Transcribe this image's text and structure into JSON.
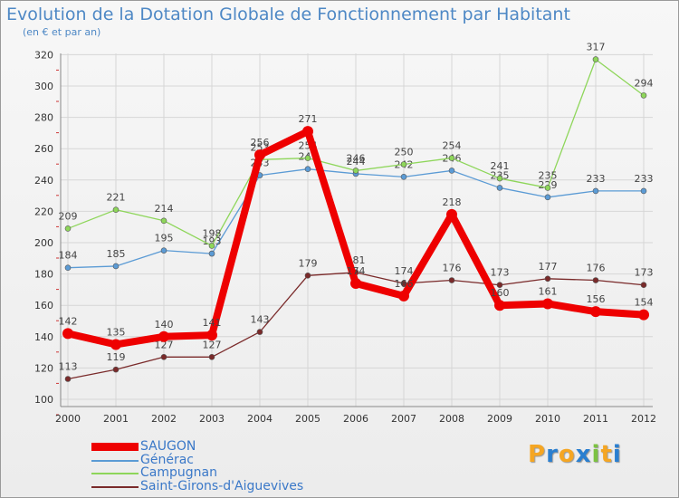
{
  "chart_data": {
    "type": "line",
    "title": "Evolution de la Dotation Globale de Fonctionnement par Habitant",
    "subtitle": "(en € et par an)",
    "x": [
      "2000",
      "2001",
      "2002",
      "2003",
      "2004",
      "2005",
      "2006",
      "2007",
      "2008",
      "2009",
      "2010",
      "2011",
      "2012"
    ],
    "ylim": [
      100,
      320
    ],
    "yticks": [
      100,
      120,
      140,
      160,
      180,
      200,
      220,
      240,
      260,
      280,
      300,
      320
    ],
    "series": [
      {
        "name": "Saint-Girons-d'Aiguevives",
        "color": "#7a2a2a",
        "values": [
          113,
          119,
          127,
          127,
          143,
          179,
          181,
          174,
          176,
          173,
          177,
          176,
          173
        ]
      },
      {
        "name": "Générac",
        "color": "#5b9bd5",
        "values": [
          184,
          185,
          195,
          193,
          243,
          247,
          244,
          242,
          246,
          235,
          229,
          233,
          233
        ]
      },
      {
        "name": "Campugnan",
        "color": "#8ed65a",
        "values": [
          209,
          221,
          214,
          198,
          253,
          254,
          246,
          250,
          254,
          241,
          235,
          317,
          294
        ]
      },
      {
        "name": "SAUGON",
        "color": "#ee0000",
        "values": [
          142,
          135,
          140,
          141,
          256,
          271,
          174,
          166,
          218,
          160,
          161,
          156,
          154
        ]
      }
    ],
    "legend": [
      "SAUGON",
      "Générac",
      "Campugnan",
      "Saint-Girons-d'Aiguevives"
    ]
  },
  "legend_colors": [
    "#ee0000",
    "#5b9bd5",
    "#8ed65a",
    "#7a2a2a"
  ],
  "logo": {
    "letters": [
      "P",
      "r",
      "o",
      "x",
      "i",
      "t",
      "i"
    ],
    "colors": [
      "#f5a623",
      "#2a7fd0",
      "#f5a623",
      "#2a7fd0",
      "#7cc242",
      "#f5a623",
      "#2a7fd0"
    ]
  }
}
